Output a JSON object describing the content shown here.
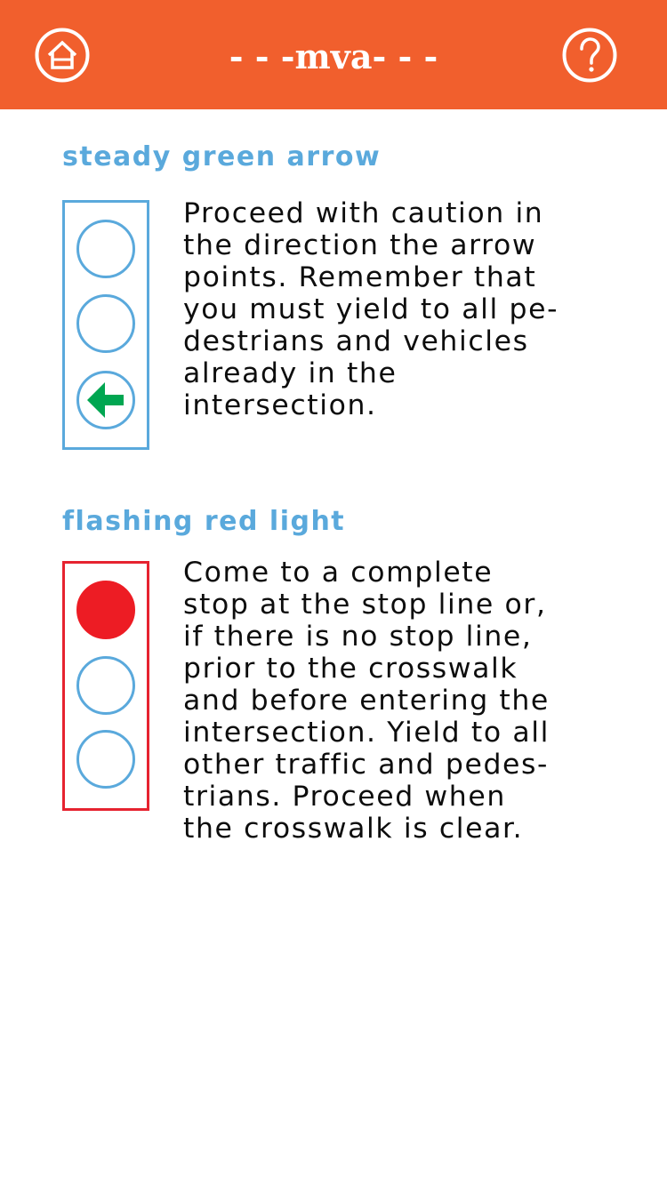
{
  "header": {
    "title": "- - -mva- - -",
    "home_icon": "home-icon",
    "help_icon": "question-mark-icon",
    "background_color": "#f15f2d"
  },
  "sections": [
    {
      "title": "steady green arrow",
      "lights": [
        "off",
        "off",
        "green-left-arrow"
      ],
      "frame_color": "#5aa9dc",
      "description_lines": [
        "Proceed with caution in",
        "the direction the arrow",
        "points. Remember that",
        "you must yield to all pe-",
        "destrians and vehicles",
        "already in the",
        "intersection."
      ]
    },
    {
      "title": "flashing red light",
      "lights": [
        "red",
        "off",
        "off"
      ],
      "frame_color": "#e62330",
      "description_lines": [
        "Come to a complete",
        "stop at the stop line or,",
        "if there is no stop line,",
        "prior to the crosswalk",
        "and before entering the",
        "intersection. Yield to all",
        "other traffic and pedes-",
        "trians. Proceed when",
        "the crosswalk is clear."
      ]
    }
  ],
  "colors": {
    "title_blue": "#5aa9dc",
    "arrow_green": "#00a651",
    "light_red": "#ed1c24"
  }
}
